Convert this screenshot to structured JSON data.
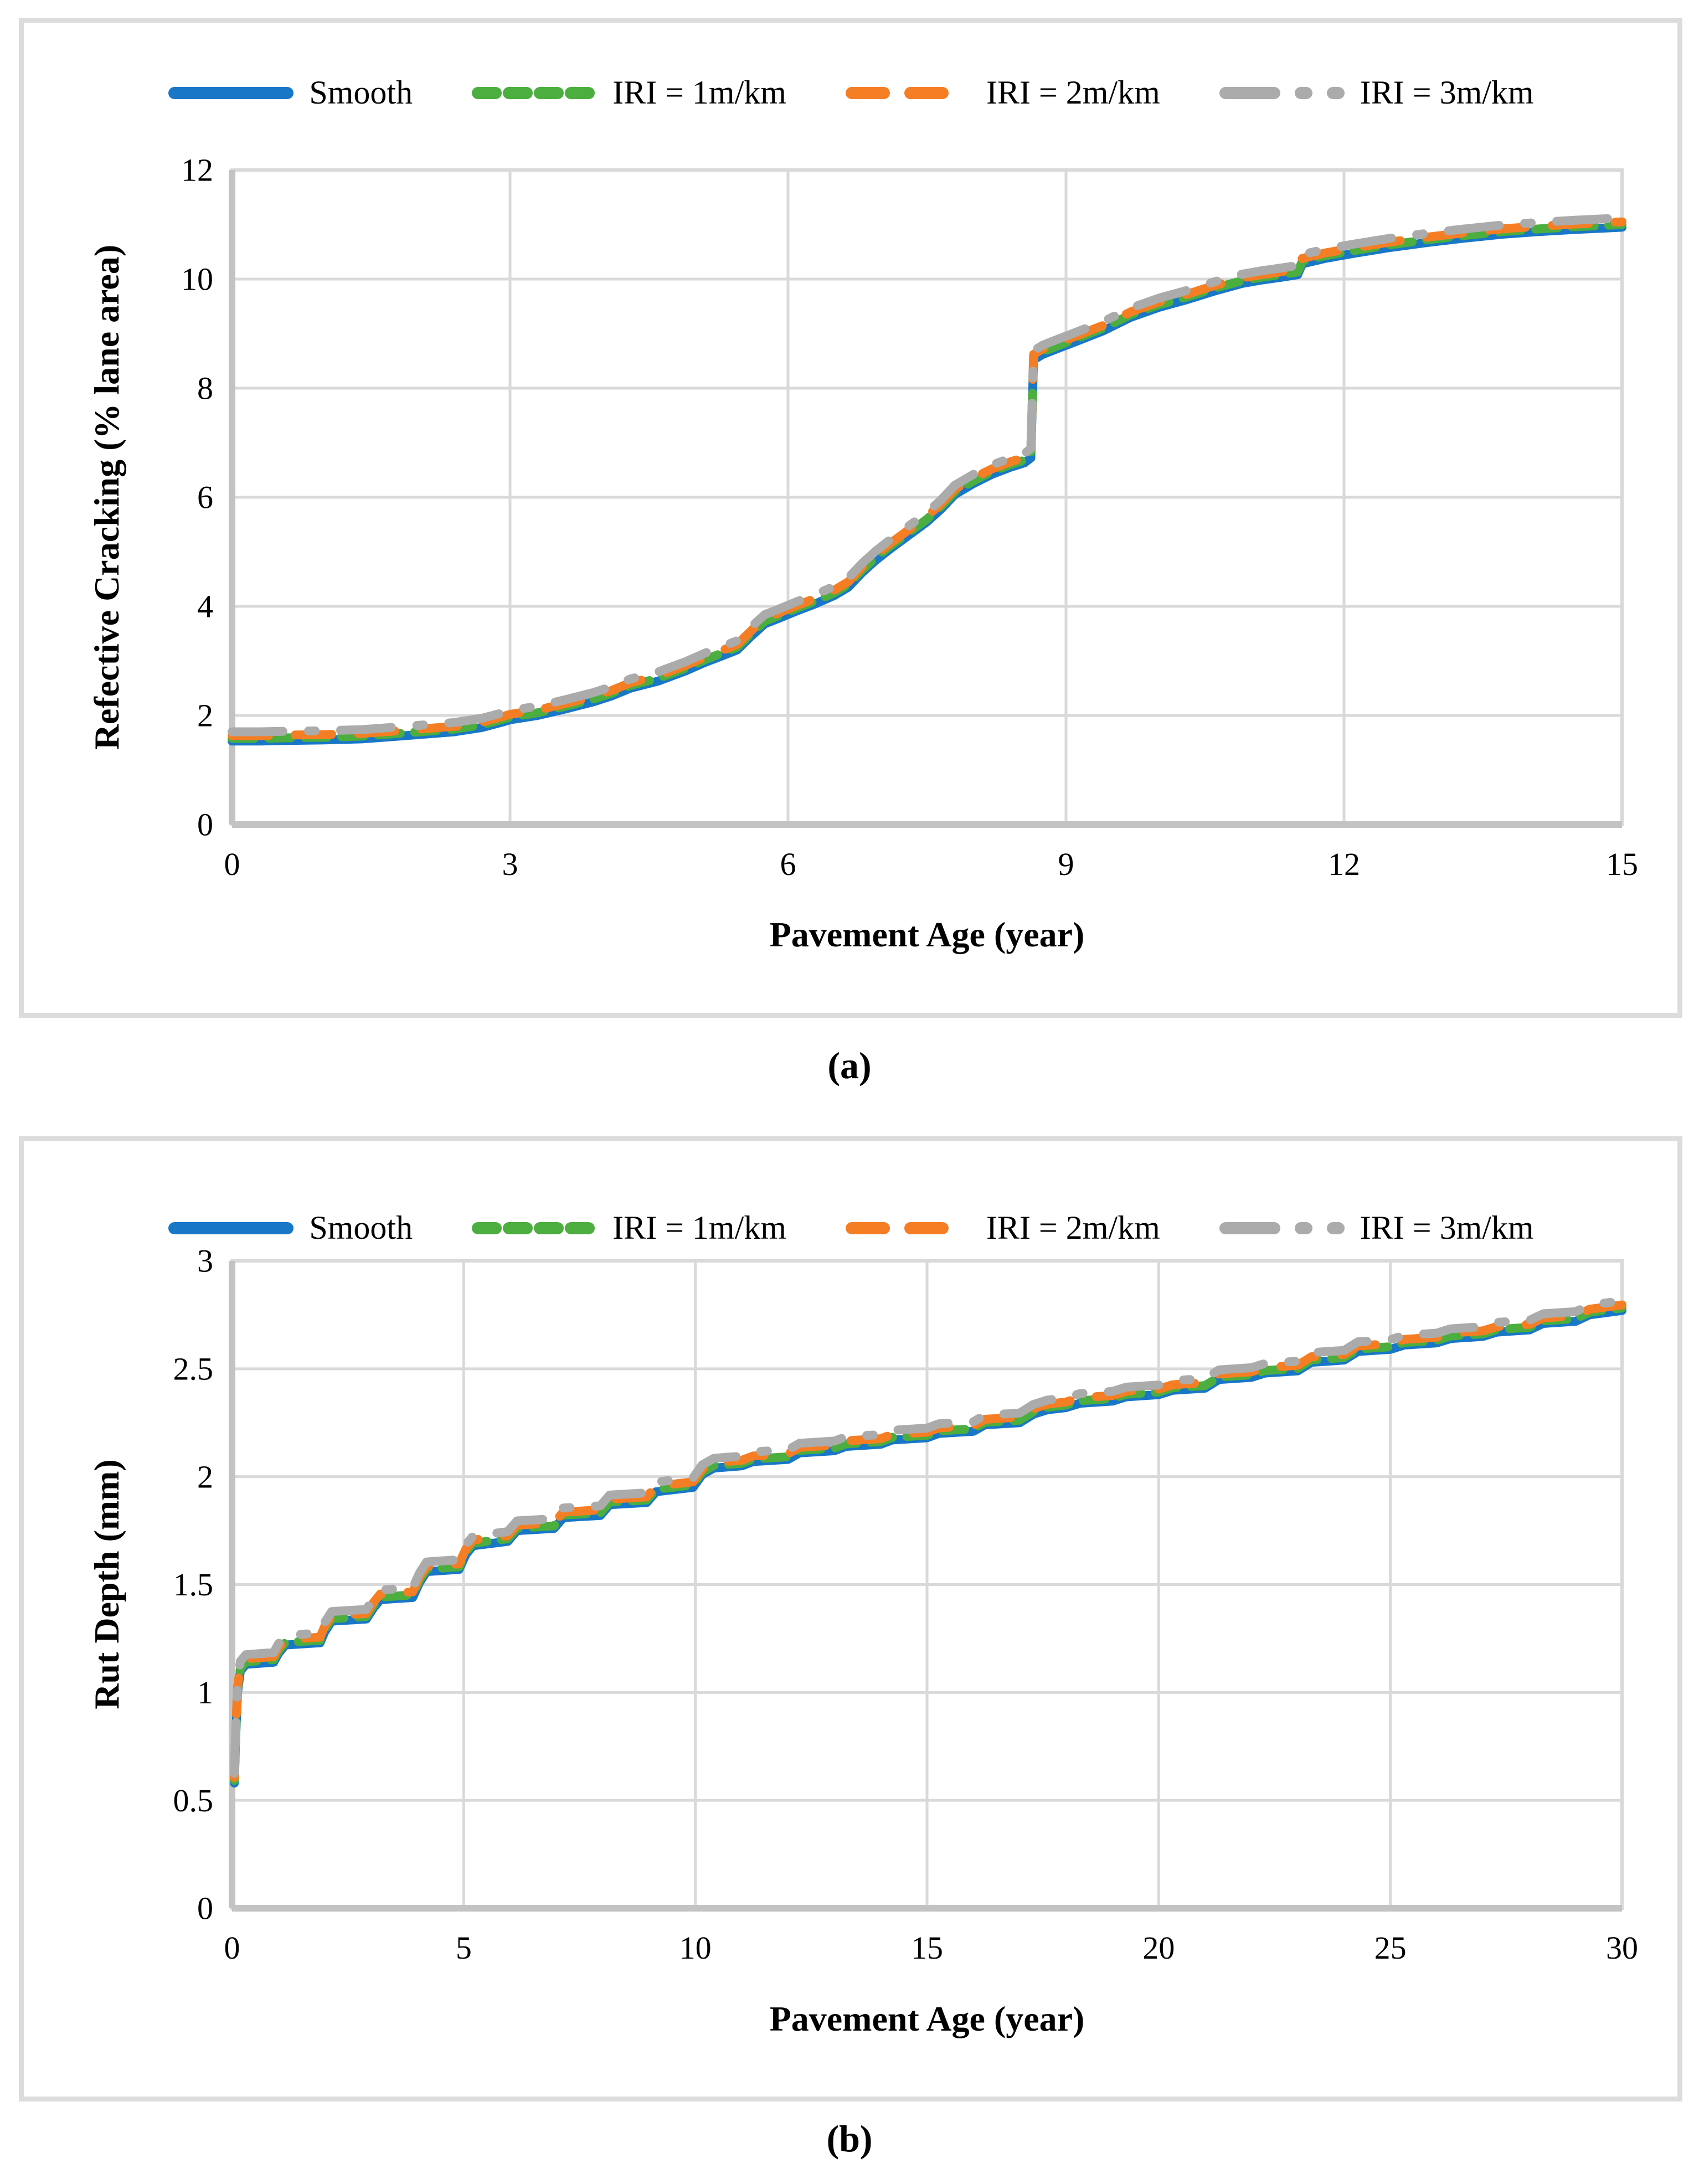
{
  "figure": {
    "caption_a": "(a)",
    "caption_b": "(b)",
    "grid_color": "#d9d9d9",
    "axis_color": "#c3c3c3",
    "tick_font_px": 58
  },
  "chart_data": [
    {
      "type": "line",
      "title": "(a)",
      "xlabel": "Pavement Age (year)",
      "ylabel": "Refective Cracking (% lane area)",
      "xlim": [
        0,
        15
      ],
      "ylim": [
        0,
        12
      ],
      "xticks": [
        0,
        3,
        6,
        9,
        12,
        15
      ],
      "yticks": [
        0,
        2,
        4,
        6,
        8,
        10,
        12
      ],
      "grid": true,
      "legend_position": "top",
      "series": [
        {
          "name": "Smooth",
          "color": "#1877c6",
          "dash": "solid",
          "offset": 0
        },
        {
          "name": "IRI = 1m/km",
          "color": "#4bae3e",
          "dash": "short-dash",
          "offset": 0.05
        },
        {
          "name": "IRI = 2m/km",
          "color": "#f57e24",
          "dash": "long-dash",
          "offset": 0.1
        },
        {
          "name": "IRI = 3m/km",
          "color": "#ababab",
          "dash": "dash-dot",
          "offset": 0.17
        }
      ],
      "base_points": [
        [
          0,
          1.53
        ],
        [
          0.3,
          1.53
        ],
        [
          0.6,
          1.54
        ],
        [
          1.0,
          1.55
        ],
        [
          1.4,
          1.57
        ],
        [
          1.8,
          1.62
        ],
        [
          2.1,
          1.66
        ],
        [
          2.4,
          1.7
        ],
        [
          2.7,
          1.78
        ],
        [
          2.9,
          1.87
        ],
        [
          3.0,
          1.92
        ],
        [
          3.3,
          2.0
        ],
        [
          3.6,
          2.12
        ],
        [
          3.9,
          2.25
        ],
        [
          4.1,
          2.36
        ],
        [
          4.3,
          2.5
        ],
        [
          4.6,
          2.63
        ],
        [
          4.9,
          2.82
        ],
        [
          5.1,
          2.97
        ],
        [
          5.3,
          3.1
        ],
        [
          5.45,
          3.2
        ],
        [
          5.6,
          3.45
        ],
        [
          5.75,
          3.68
        ],
        [
          5.9,
          3.78
        ],
        [
          6.1,
          3.92
        ],
        [
          6.3,
          4.05
        ],
        [
          6.5,
          4.2
        ],
        [
          6.65,
          4.35
        ],
        [
          6.8,
          4.62
        ],
        [
          6.95,
          4.85
        ],
        [
          7.1,
          5.05
        ],
        [
          7.3,
          5.3
        ],
        [
          7.5,
          5.55
        ],
        [
          7.65,
          5.78
        ],
        [
          7.8,
          6.05
        ],
        [
          8.0,
          6.25
        ],
        [
          8.2,
          6.42
        ],
        [
          8.4,
          6.55
        ],
        [
          8.55,
          6.63
        ],
        [
          8.62,
          6.72
        ],
        [
          8.65,
          8.52
        ],
        [
          8.75,
          8.62
        ],
        [
          8.9,
          8.72
        ],
        [
          9.1,
          8.85
        ],
        [
          9.4,
          9.05
        ],
        [
          9.7,
          9.3
        ],
        [
          10.0,
          9.48
        ],
        [
          10.3,
          9.62
        ],
        [
          10.6,
          9.78
        ],
        [
          10.9,
          9.92
        ],
        [
          11.1,
          9.98
        ],
        [
          11.35,
          10.04
        ],
        [
          11.5,
          10.08
        ],
        [
          11.55,
          10.28
        ],
        [
          11.8,
          10.38
        ],
        [
          12.1,
          10.47
        ],
        [
          12.5,
          10.58
        ],
        [
          12.9,
          10.67
        ],
        [
          13.3,
          10.75
        ],
        [
          13.7,
          10.82
        ],
        [
          14.1,
          10.87
        ],
        [
          14.5,
          10.91
        ],
        [
          15.0,
          10.95
        ]
      ]
    },
    {
      "type": "line",
      "title": "(b)",
      "xlabel": "Pavement Age (year)",
      "ylabel": "Rut Depth (mm)",
      "xlim": [
        0,
        30
      ],
      "ylim": [
        0,
        3
      ],
      "xticks": [
        0,
        5,
        10,
        15,
        20,
        25,
        30
      ],
      "yticks": [
        0,
        0.5,
        1,
        1.5,
        2,
        2.5,
        3
      ],
      "grid": true,
      "legend_position": "top",
      "series": [
        {
          "name": "Smooth",
          "color": "#1877c6",
          "dash": "solid",
          "offset": 0
        },
        {
          "name": "IRI = 1m/km",
          "color": "#4bae3e",
          "dash": "short-dash",
          "offset": 0.012
        },
        {
          "name": "IRI = 2m/km",
          "color": "#f57e24",
          "dash": "long-dash",
          "offset": 0.026
        },
        {
          "name": "IRI = 3m/km",
          "color": "#ababab",
          "dash": "dash-dot",
          "offset": 0.045
        }
      ],
      "base_points": [
        [
          0.05,
          0.58
        ],
        [
          0.08,
          0.8
        ],
        [
          0.12,
          1.0
        ],
        [
          0.18,
          1.1
        ],
        [
          0.3,
          1.13
        ],
        [
          0.9,
          1.14
        ],
        [
          1.0,
          1.18
        ],
        [
          1.15,
          1.22
        ],
        [
          1.9,
          1.23
        ],
        [
          2.0,
          1.28
        ],
        [
          2.15,
          1.33
        ],
        [
          2.9,
          1.34
        ],
        [
          3.05,
          1.39
        ],
        [
          3.2,
          1.43
        ],
        [
          3.9,
          1.44
        ],
        [
          4.05,
          1.51
        ],
        [
          4.2,
          1.56
        ],
        [
          4.9,
          1.57
        ],
        [
          5.05,
          1.64
        ],
        [
          5.2,
          1.68
        ],
        [
          5.95,
          1.7
        ],
        [
          6.15,
          1.75
        ],
        [
          6.95,
          1.76
        ],
        [
          7.15,
          1.81
        ],
        [
          7.95,
          1.82
        ],
        [
          8.15,
          1.87
        ],
        [
          8.95,
          1.88
        ],
        [
          9.15,
          1.93
        ],
        [
          9.95,
          1.95
        ],
        [
          10.15,
          2.01
        ],
        [
          10.4,
          2.04
        ],
        [
          11.0,
          2.05
        ],
        [
          11.25,
          2.07
        ],
        [
          12.0,
          2.08
        ],
        [
          12.25,
          2.11
        ],
        [
          13.0,
          2.12
        ],
        [
          13.25,
          2.14
        ],
        [
          14.0,
          2.15
        ],
        [
          14.25,
          2.17
        ],
        [
          15.0,
          2.18
        ],
        [
          15.25,
          2.2
        ],
        [
          16.0,
          2.21
        ],
        [
          16.25,
          2.24
        ],
        [
          17.0,
          2.25
        ],
        [
          17.3,
          2.29
        ],
        [
          17.6,
          2.31
        ],
        [
          18.0,
          2.32
        ],
        [
          18.3,
          2.34
        ],
        [
          19.0,
          2.35
        ],
        [
          19.3,
          2.37
        ],
        [
          20.0,
          2.38
        ],
        [
          20.3,
          2.4
        ],
        [
          21.0,
          2.41
        ],
        [
          21.3,
          2.45
        ],
        [
          22.0,
          2.46
        ],
        [
          22.3,
          2.48
        ],
        [
          23.0,
          2.49
        ],
        [
          23.3,
          2.53
        ],
        [
          24.0,
          2.54
        ],
        [
          24.3,
          2.58
        ],
        [
          25.0,
          2.59
        ],
        [
          25.3,
          2.61
        ],
        [
          26.0,
          2.62
        ],
        [
          26.3,
          2.64
        ],
        [
          27.0,
          2.65
        ],
        [
          27.3,
          2.67
        ],
        [
          28.0,
          2.68
        ],
        [
          28.3,
          2.71
        ],
        [
          29.0,
          2.72
        ],
        [
          29.3,
          2.75
        ],
        [
          30.0,
          2.77
        ]
      ]
    }
  ]
}
